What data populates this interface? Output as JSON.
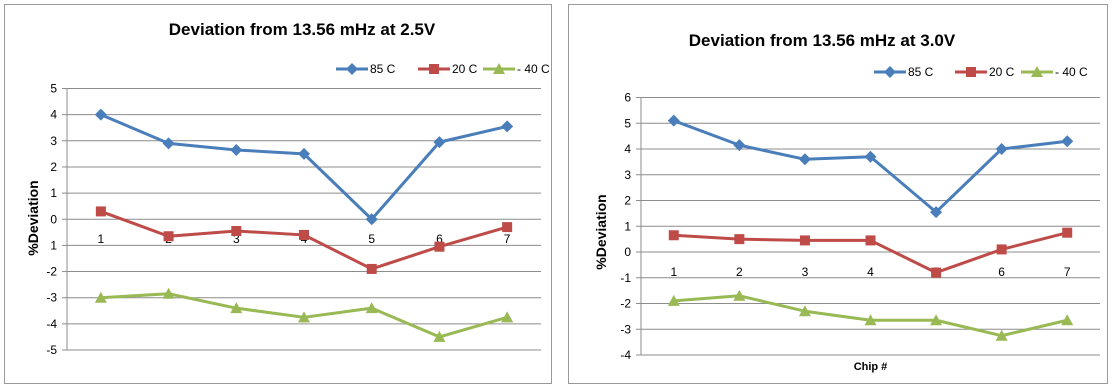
{
  "charts": [
    {
      "type": "line",
      "title": "Deviation from 13.56 mHz at 2.5V",
      "ylabel": "%Deviation",
      "xlabel": "",
      "y_ticks": [
        "5",
        "4",
        "3",
        "2",
        "1",
        "0",
        "1",
        "-2",
        "-3",
        "-4",
        "-5"
      ],
      "ylim": [
        -5,
        5
      ],
      "categories": [
        "1",
        "2",
        "3",
        "4",
        "5",
        "6",
        "7"
      ],
      "legend": [
        "85 C",
        "20 C",
        "- 40 C"
      ]
    },
    {
      "type": "line",
      "title": "Deviation from 13.56 mHz at 3.0V",
      "ylabel": "%Deviation",
      "xlabel": "Chip #",
      "y_ticks": [
        "6",
        "5",
        "4",
        "3",
        "2",
        "1",
        "0",
        "-1",
        "-2",
        "-3",
        "-4"
      ],
      "ylim": [
        -4,
        6
      ],
      "categories": [
        "1",
        "2",
        "3",
        "4",
        "5",
        "6",
        "7"
      ],
      "legend": [
        "85 C",
        "20 C",
        "- 40 C"
      ]
    }
  ],
  "chart_data": [
    {
      "type": "line",
      "title": "Deviation from 13.56 mHz at 2.5V",
      "xlabel": "",
      "ylabel": "%Deviation",
      "categories": [
        "1",
        "2",
        "3",
        "4",
        "5",
        "6",
        "7"
      ],
      "ylim": [
        -5,
        5
      ],
      "grid": true,
      "legend_position": "top-right",
      "series": [
        {
          "name": "85 C",
          "color": "#4a7ebb",
          "marker": "diamond",
          "values": [
            4.0,
            2.9,
            2.65,
            2.5,
            0.0,
            2.95,
            3.55
          ]
        },
        {
          "name": "20 C",
          "color": "#be4b48",
          "marker": "square",
          "values": [
            0.3,
            -0.65,
            -0.45,
            -0.6,
            -1.9,
            -1.05,
            -0.3
          ]
        },
        {
          "name": "- 40 C",
          "color": "#98b954",
          "marker": "triangle",
          "values": [
            -3.0,
            -2.85,
            -3.4,
            -3.75,
            -3.4,
            -4.5,
            -3.75
          ]
        }
      ]
    },
    {
      "type": "line",
      "title": "Deviation from 13.56 mHz at 3.0V",
      "xlabel": "Chip #",
      "ylabel": "%Deviation",
      "categories": [
        "1",
        "2",
        "3",
        "4",
        "5",
        "6",
        "7"
      ],
      "ylim": [
        -4,
        6
      ],
      "grid": true,
      "legend_position": "top-right",
      "series": [
        {
          "name": "85 C",
          "color": "#4a7ebb",
          "marker": "diamond",
          "values": [
            5.1,
            4.15,
            3.6,
            3.7,
            1.55,
            4.0,
            4.3
          ]
        },
        {
          "name": "20 C",
          "color": "#be4b48",
          "marker": "square",
          "values": [
            0.65,
            0.5,
            0.45,
            0.45,
            -0.8,
            0.1,
            0.75
          ]
        },
        {
          "name": "- 40 C",
          "color": "#98b954",
          "marker": "triangle",
          "values": [
            -1.9,
            -1.7,
            -2.3,
            -2.65,
            -2.65,
            -3.25,
            -2.65
          ]
        }
      ]
    }
  ]
}
